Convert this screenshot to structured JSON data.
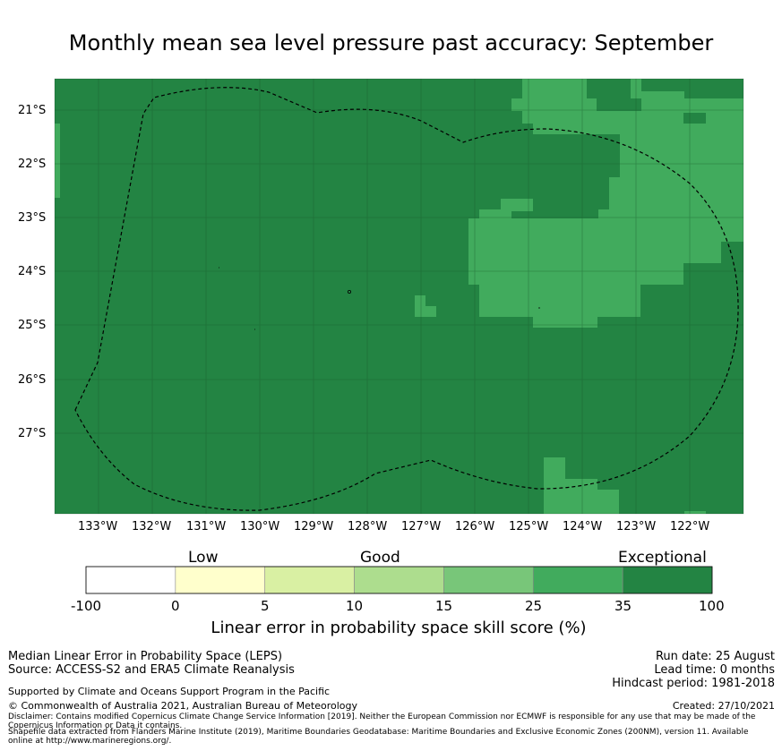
{
  "title": "Monthly mean sea level pressure past accuracy: September",
  "map": {
    "lat_labels": [
      "21°S",
      "22°S",
      "23°S",
      "24°S",
      "25°S",
      "26°S",
      "27°S"
    ],
    "lon_labels": [
      "133°W",
      "132°W",
      "131°W",
      "130°W",
      "129°W",
      "128°W",
      "127°W",
      "126°W",
      "125°W",
      "124°W",
      "123°W",
      "122°W"
    ],
    "colors": {
      "exceptional": "#238443",
      "very_good": "#41ab5d",
      "boundary": "#000000"
    }
  },
  "colorbar": {
    "categories": [
      "Low",
      "Good",
      "Exceptional"
    ],
    "tick_labels": [
      "-100",
      "0",
      "5",
      "10",
      "15",
      "25",
      "35",
      "100"
    ],
    "colors": [
      "#ffffff",
      "#ffffcc",
      "#d9f0a3",
      "#addd8e",
      "#78c679",
      "#41ab5d",
      "#238443"
    ],
    "label": "Linear error in probability space skill score (%)"
  },
  "footer": {
    "left": [
      "Median Linear Error in Probability Space (LEPS)",
      "Source: ACCESS-S2 and ERA5 Climate Reanalysis"
    ],
    "right": [
      "Run date: 25 August",
      "Lead time: 0 months",
      "Hindcast period: 1981-2018"
    ],
    "support": "Supported by Climate and Oceans Support Program in the Pacific",
    "copyright": "© Commonwealth of Australia 2021, Australian Bureau of Meteorology",
    "created": "Created: 27/10/2021",
    "disclaimer": [
      "Disclaimer: Contains modified Copernicus Climate Change Service Information [2019]. Neither the European Commission nor ECMWF is responsible for any use that may be made of the",
      "Copernicus Information or Data it contains.",
      "Shapefile data extracted from Flanders Marine Institute (2019), Maritime Boundaries Geodatabase: Maritime Boundaries and Exclusive Economic Zones (200NM), version 11. Available",
      "online at http://www.marineregions.org/."
    ]
  }
}
